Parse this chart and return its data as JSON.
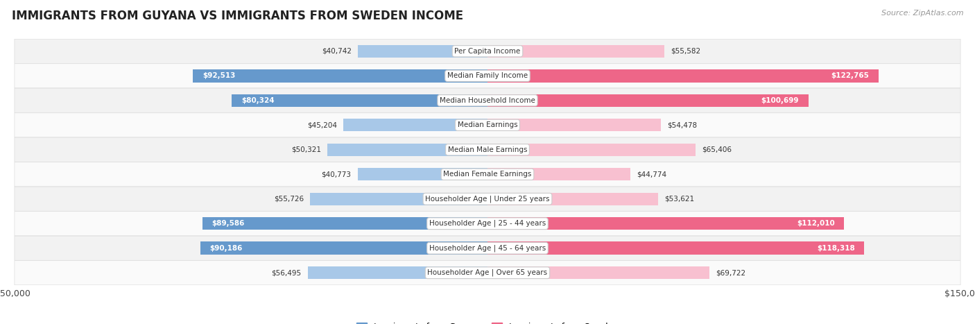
{
  "title": "IMMIGRANTS FROM GUYANA VS IMMIGRANTS FROM SWEDEN INCOME",
  "source": "Source: ZipAtlas.com",
  "categories": [
    "Per Capita Income",
    "Median Family Income",
    "Median Household Income",
    "Median Earnings",
    "Median Male Earnings",
    "Median Female Earnings",
    "Householder Age | Under 25 years",
    "Householder Age | 25 - 44 years",
    "Householder Age | 45 - 64 years",
    "Householder Age | Over 65 years"
  ],
  "guyana_values": [
    40742,
    92513,
    80324,
    45204,
    50321,
    40773,
    55726,
    89586,
    90186,
    56495
  ],
  "sweden_values": [
    55582,
    122765,
    100699,
    54478,
    65406,
    44774,
    53621,
    112010,
    118318,
    69722
  ],
  "guyana_labels": [
    "$40,742",
    "$92,513",
    "$80,324",
    "$45,204",
    "$50,321",
    "$40,773",
    "$55,726",
    "$89,586",
    "$90,186",
    "$56,495"
  ],
  "sweden_labels": [
    "$55,582",
    "$122,765",
    "$100,699",
    "$54,478",
    "$65,406",
    "$44,774",
    "$53,621",
    "$112,010",
    "$118,318",
    "$69,722"
  ],
  "guyana_color_light": "#a8c8e8",
  "guyana_color_dark": "#6699cc",
  "sweden_color_light": "#f8c0d0",
  "sweden_color_dark": "#ee6688",
  "max_value": 150000,
  "bar_height": 0.52,
  "row_bg_odd": "#f2f2f2",
  "row_bg_even": "#fafafa",
  "legend_guyana": "Immigrants from Guyana",
  "legend_sweden": "Immigrants from Sweden",
  "guyana_inside_threshold": 75000,
  "sweden_inside_threshold": 75000,
  "label_fontsize": 7.5,
  "cat_fontsize": 7.5,
  "title_fontsize": 12,
  "source_fontsize": 8
}
